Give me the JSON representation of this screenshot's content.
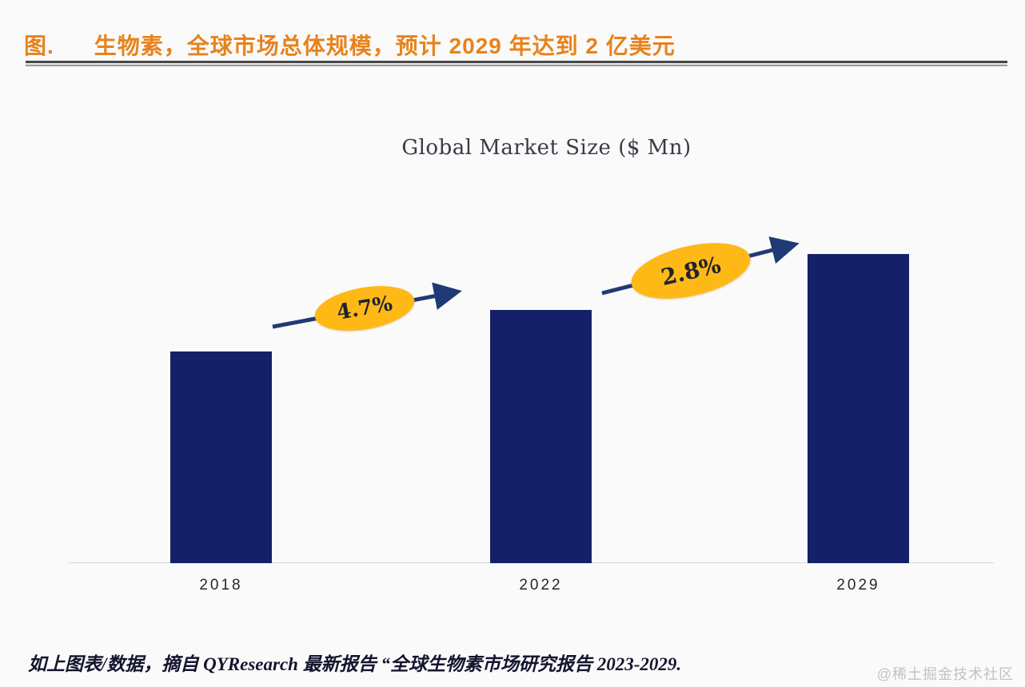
{
  "page": {
    "figure_label": "图.",
    "figure_title": "生物素，全球市场总体规模，预计 2029 年达到 2 亿美元",
    "footnote": "如上图表/数据，摘自 QYResearch 最新报告 “全球生物素市场研究报告 2023-2029.",
    "watermark": "@稀土掘金技术社区"
  },
  "colors": {
    "title_orange": "#e8821c",
    "bar_navy": "#142168",
    "arrow_navy": "#1f3a74",
    "ellipse_yellow": "#ffb916",
    "axis_gray": "#d8d8d8",
    "watermark_gray": "#c2c2c2"
  },
  "chart_data": {
    "type": "bar",
    "title": "Global Market Size ($ Mn)",
    "categories": [
      "2018",
      "2022",
      "2029"
    ],
    "values": [
      137,
      164,
      200
    ],
    "ylim": [
      0,
      210
    ],
    "xlabel": "",
    "ylabel": "",
    "grid": false,
    "legend": false,
    "annotations": [
      {
        "label": "4.7%",
        "between": [
          "2018",
          "2022"
        ]
      },
      {
        "label": "2.8%",
        "between": [
          "2022",
          "2029"
        ]
      }
    ]
  }
}
